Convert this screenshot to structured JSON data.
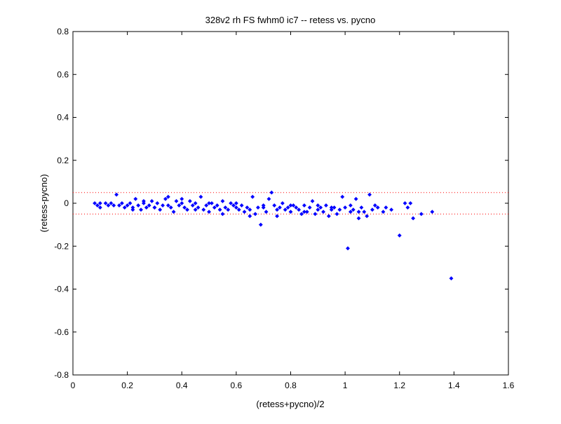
{
  "chart_data": {
    "type": "scatter",
    "title": "328v2 rh FS fwhm0 ic7 -- retess vs. pycno",
    "xlabel": "(retess+pycno)/2",
    "ylabel": "(retess-pycno)",
    "xlim": [
      0,
      1.6
    ],
    "ylim": [
      -0.8,
      0.8
    ],
    "xticks": [
      0,
      0.2,
      0.4,
      0.6,
      0.8,
      1,
      1.2,
      1.4,
      1.6
    ],
    "xtick_labels": [
      "0",
      "0.2",
      "0.4",
      "0.6",
      "0.8",
      "1",
      "1.2",
      "1.4",
      "1.6"
    ],
    "yticks": [
      -0.8,
      -0.6,
      -0.4,
      -0.2,
      0,
      0.2,
      0.4,
      0.6,
      0.8
    ],
    "ytick_labels": [
      "-0.8",
      "-0.6",
      "-0.4",
      "-0.2",
      "0",
      "0.2",
      "0.4",
      "0.6",
      "0.8"
    ],
    "grid": false,
    "marker_color": "#0000ff",
    "reference_line_color": "#ff0000",
    "reference_lines": [
      0.05,
      -0.05
    ],
    "series": [
      {
        "points": [
          [
            0.08,
            0.0
          ],
          [
            0.09,
            -0.01
          ],
          [
            0.1,
            -0.02
          ],
          [
            0.1,
            0.0
          ],
          [
            0.12,
            0.0
          ],
          [
            0.13,
            -0.01
          ],
          [
            0.14,
            0.0
          ],
          [
            0.15,
            -0.01
          ],
          [
            0.16,
            0.04
          ],
          [
            0.17,
            -0.01
          ],
          [
            0.18,
            0.0
          ],
          [
            0.19,
            -0.02
          ],
          [
            0.2,
            -0.01
          ],
          [
            0.21,
            0.0
          ],
          [
            0.22,
            -0.02
          ],
          [
            0.23,
            0.02
          ],
          [
            0.24,
            -0.01
          ],
          [
            0.25,
            -0.03
          ],
          [
            0.26,
            0.0
          ],
          [
            0.27,
            -0.02
          ],
          [
            0.28,
            -0.01
          ],
          [
            0.29,
            0.01
          ],
          [
            0.3,
            -0.02
          ],
          [
            0.31,
            0.0
          ],
          [
            0.32,
            -0.03
          ],
          [
            0.33,
            -0.01
          ],
          [
            0.34,
            0.02
          ],
          [
            0.35,
            0.03
          ],
          [
            0.36,
            -0.02
          ],
          [
            0.37,
            -0.04
          ],
          [
            0.38,
            0.01
          ],
          [
            0.39,
            -0.01
          ],
          [
            0.4,
            0.02
          ],
          [
            0.41,
            -0.02
          ],
          [
            0.42,
            -0.03
          ],
          [
            0.43,
            0.01
          ],
          [
            0.44,
            -0.01
          ],
          [
            0.45,
            0.0
          ],
          [
            0.46,
            -0.02
          ],
          [
            0.47,
            0.03
          ],
          [
            0.48,
            -0.03
          ],
          [
            0.49,
            -0.01
          ],
          [
            0.5,
            -0.04
          ],
          [
            0.51,
            0.0
          ],
          [
            0.52,
            -0.02
          ],
          [
            0.53,
            -0.01
          ],
          [
            0.54,
            -0.03
          ],
          [
            0.55,
            0.01
          ],
          [
            0.56,
            -0.02
          ],
          [
            0.57,
            -0.03
          ],
          [
            0.58,
            0.0
          ],
          [
            0.59,
            -0.01
          ],
          [
            0.6,
            -0.02
          ],
          [
            0.61,
            -0.03
          ],
          [
            0.62,
            -0.01
          ],
          [
            0.63,
            -0.04
          ],
          [
            0.64,
            -0.02
          ],
          [
            0.65,
            -0.03
          ],
          [
            0.66,
            0.03
          ],
          [
            0.67,
            -0.05
          ],
          [
            0.68,
            -0.02
          ],
          [
            0.69,
            -0.1
          ],
          [
            0.7,
            -0.01
          ],
          [
            0.71,
            -0.04
          ],
          [
            0.72,
            0.02
          ],
          [
            0.73,
            0.05
          ],
          [
            0.74,
            -0.01
          ],
          [
            0.75,
            -0.06
          ],
          [
            0.76,
            -0.02
          ],
          [
            0.77,
            0.0
          ],
          [
            0.78,
            -0.03
          ],
          [
            0.79,
            -0.02
          ],
          [
            0.8,
            -0.04
          ],
          [
            0.81,
            -0.01
          ],
          [
            0.82,
            -0.02
          ],
          [
            0.83,
            -0.03
          ],
          [
            0.84,
            -0.05
          ],
          [
            0.85,
            -0.01
          ],
          [
            0.86,
            -0.04
          ],
          [
            0.87,
            -0.02
          ],
          [
            0.88,
            0.01
          ],
          [
            0.89,
            -0.05
          ],
          [
            0.9,
            -0.03
          ],
          [
            0.91,
            -0.02
          ],
          [
            0.92,
            -0.04
          ],
          [
            0.93,
            -0.01
          ],
          [
            0.94,
            -0.06
          ],
          [
            0.95,
            -0.03
          ],
          [
            0.96,
            -0.02
          ],
          [
            0.97,
            -0.05
          ],
          [
            0.98,
            -0.03
          ],
          [
            0.99,
            0.03
          ],
          [
            1.0,
            -0.02
          ],
          [
            1.01,
            -0.21
          ],
          [
            1.02,
            -0.04
          ],
          [
            1.03,
            -0.03
          ],
          [
            1.04,
            0.02
          ],
          [
            1.05,
            -0.07
          ],
          [
            1.06,
            -0.02
          ],
          [
            1.07,
            -0.04
          ],
          [
            1.08,
            -0.06
          ],
          [
            1.09,
            0.04
          ],
          [
            1.1,
            -0.03
          ],
          [
            1.11,
            -0.01
          ],
          [
            1.12,
            -0.02
          ],
          [
            1.14,
            -0.04
          ],
          [
            1.15,
            -0.02
          ],
          [
            1.17,
            -0.03
          ],
          [
            1.2,
            -0.15
          ],
          [
            1.22,
            0.0
          ],
          [
            1.23,
            -0.02
          ],
          [
            1.24,
            0.0
          ],
          [
            1.25,
            -0.07
          ],
          [
            1.28,
            -0.05
          ],
          [
            1.32,
            -0.04
          ],
          [
            1.39,
            -0.35
          ],
          [
            0.22,
            -0.03
          ],
          [
            0.26,
            0.01
          ],
          [
            0.3,
            -0.02
          ],
          [
            0.35,
            -0.01
          ],
          [
            0.4,
            0.0
          ],
          [
            0.45,
            -0.03
          ],
          [
            0.5,
            0.0
          ],
          [
            0.55,
            -0.05
          ],
          [
            0.6,
            0.0
          ],
          [
            0.65,
            -0.06
          ],
          [
            0.7,
            -0.02
          ],
          [
            0.75,
            -0.03
          ],
          [
            0.8,
            -0.01
          ],
          [
            0.85,
            -0.04
          ],
          [
            0.9,
            -0.01
          ],
          [
            0.95,
            -0.02
          ],
          [
            1.02,
            -0.01
          ],
          [
            1.05,
            -0.04
          ]
        ]
      }
    ]
  }
}
